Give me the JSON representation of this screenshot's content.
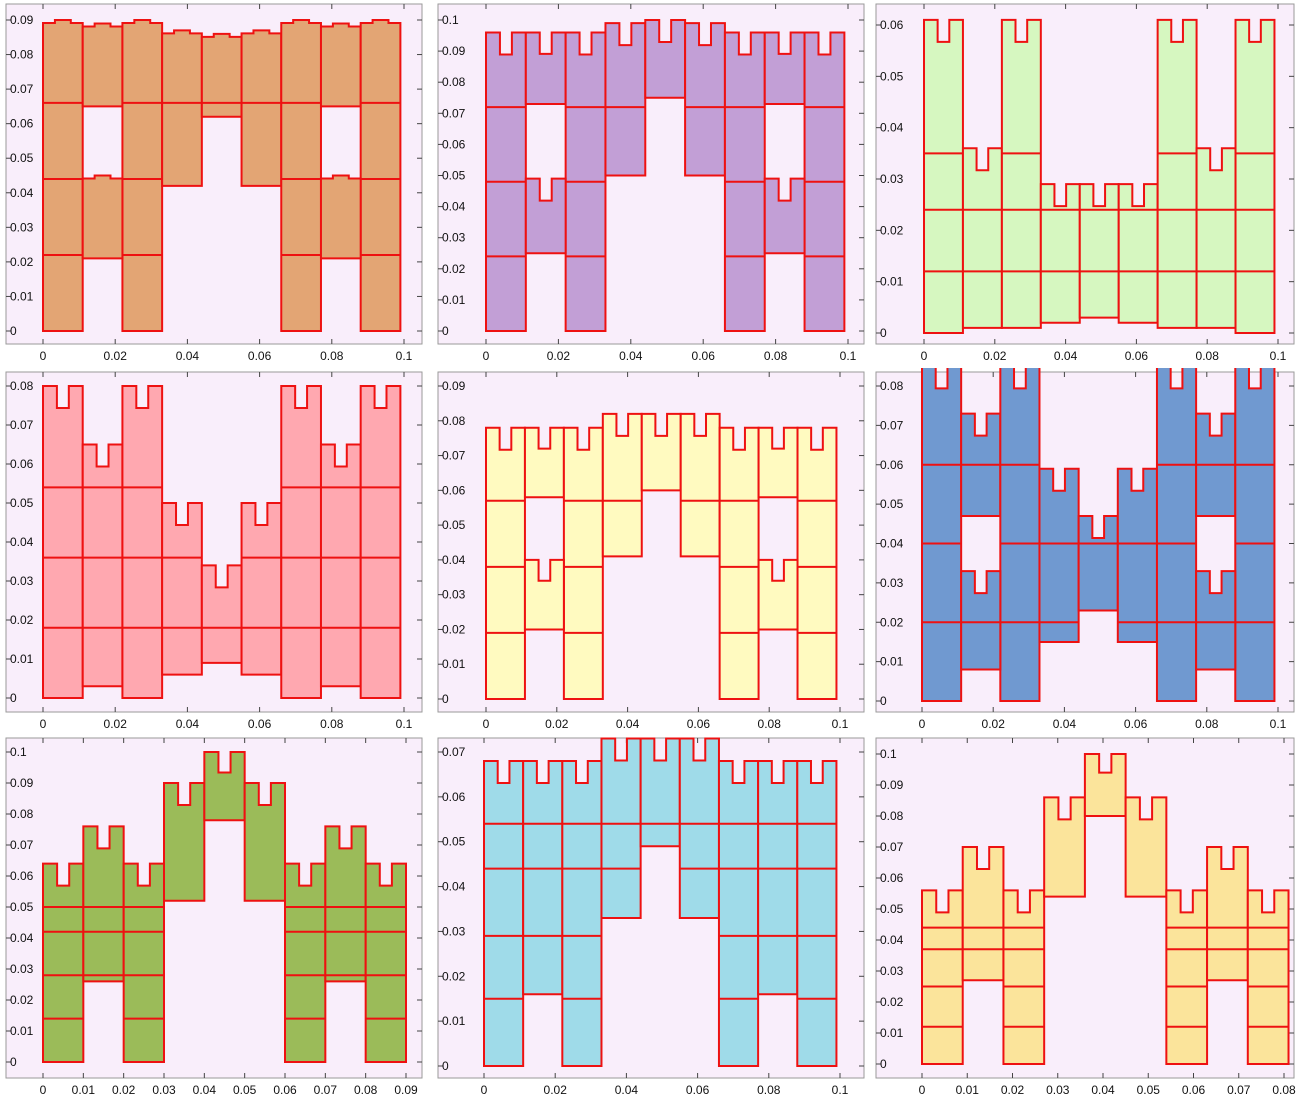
{
  "chart_data": [
    {
      "type": "fractal-region",
      "title": "",
      "fill": "#e3a574",
      "xlim": [
        0,
        0.1
      ],
      "ylim": [
        0,
        0.09
      ],
      "x_ticks": [
        "0",
        "0.02",
        "0.04",
        "0.06",
        "0.08",
        "0.1"
      ],
      "y_ticks": [
        "0",
        "0.01",
        "0.02",
        "0.03",
        "0.04",
        "0.05",
        "0.06",
        "0.07",
        "0.08",
        "0.09"
      ],
      "columns": [
        {
          "x0": 0.0,
          "x1": 0.011,
          "bottom": 0.0,
          "top": 0.09,
          "notched": false
        },
        {
          "x0": 0.011,
          "x1": 0.022,
          "bottom": 0.065,
          "top": 0.089,
          "notched": false
        },
        {
          "x0": 0.022,
          "x1": 0.033,
          "bottom": 0.0,
          "top": 0.09,
          "notched": false
        },
        {
          "x0": 0.033,
          "x1": 0.044,
          "bottom": 0.042,
          "top": 0.087,
          "notched": false
        },
        {
          "x0": 0.044,
          "x1": 0.055,
          "bottom": 0.062,
          "top": 0.086,
          "notched": false
        },
        {
          "x0": 0.055,
          "x1": 0.066,
          "bottom": 0.042,
          "top": 0.087,
          "notched": false
        },
        {
          "x0": 0.066,
          "x1": 0.077,
          "bottom": 0.0,
          "top": 0.09,
          "notched": false
        },
        {
          "x0": 0.077,
          "x1": 0.088,
          "bottom": 0.065,
          "top": 0.089,
          "notched": false
        },
        {
          "x0": 0.088,
          "x1": 0.099,
          "bottom": 0.0,
          "top": 0.09,
          "notched": false
        },
        {
          "x0": 0.011,
          "x1": 0.022,
          "bottom": 0.021,
          "top": 0.045,
          "notched": false
        },
        {
          "x0": 0.077,
          "x1": 0.088,
          "bottom": 0.021,
          "top": 0.045,
          "notched": false
        }
      ],
      "levels": [
        0.022,
        0.044,
        0.066
      ]
    },
    {
      "type": "fractal-region",
      "title": "",
      "fill": "#c29fd6",
      "xlim": [
        0,
        0.1
      ],
      "ylim": [
        0,
        0.1
      ],
      "x_ticks": [
        "0",
        "0.02",
        "0.04",
        "0.06",
        "0.08",
        "0.1"
      ],
      "y_ticks": [
        "0",
        "0.01",
        "0.02",
        "0.03",
        "0.04",
        "0.05",
        "0.06",
        "0.07",
        "0.08",
        "0.09",
        "0.1"
      ],
      "columns": [
        {
          "x0": 0.0,
          "x1": 0.011,
          "bottom": 0.0,
          "top": 0.096,
          "notched": true
        },
        {
          "x0": 0.011,
          "x1": 0.022,
          "bottom": 0.073,
          "top": 0.096,
          "notched": true
        },
        {
          "x0": 0.022,
          "x1": 0.033,
          "bottom": 0.0,
          "top": 0.096,
          "notched": true
        },
        {
          "x0": 0.033,
          "x1": 0.044,
          "bottom": 0.05,
          "top": 0.099,
          "notched": true
        },
        {
          "x0": 0.044,
          "x1": 0.055,
          "bottom": 0.075,
          "top": 0.1,
          "notched": true
        },
        {
          "x0": 0.055,
          "x1": 0.066,
          "bottom": 0.05,
          "top": 0.099,
          "notched": true
        },
        {
          "x0": 0.066,
          "x1": 0.077,
          "bottom": 0.0,
          "top": 0.096,
          "notched": true
        },
        {
          "x0": 0.077,
          "x1": 0.088,
          "bottom": 0.073,
          "top": 0.096,
          "notched": true
        },
        {
          "x0": 0.088,
          "x1": 0.099,
          "bottom": 0.0,
          "top": 0.096,
          "notched": true
        },
        {
          "x0": 0.011,
          "x1": 0.022,
          "bottom": 0.025,
          "top": 0.049,
          "notched": true
        },
        {
          "x0": 0.077,
          "x1": 0.088,
          "bottom": 0.025,
          "top": 0.049,
          "notched": true
        }
      ],
      "levels": [
        0.024,
        0.048,
        0.072
      ]
    },
    {
      "type": "fractal-region",
      "title": "",
      "fill": "#d6f7c0",
      "xlim": [
        0,
        0.1
      ],
      "ylim": [
        0,
        0.06
      ],
      "x_ticks": [
        "0",
        "0.02",
        "0.04",
        "0.06",
        "0.08",
        "0.1"
      ],
      "y_ticks": [
        "0",
        "0.01",
        "0.02",
        "0.03",
        "0.04",
        "0.05",
        "0.06"
      ],
      "columns": [
        {
          "x0": 0.0,
          "x1": 0.011,
          "bottom": 0.0,
          "top": 0.061,
          "notched": true
        },
        {
          "x0": 0.011,
          "x1": 0.022,
          "bottom": 0.001,
          "top": 0.036,
          "notched": true
        },
        {
          "x0": 0.022,
          "x1": 0.033,
          "bottom": 0.001,
          "top": 0.061,
          "notched": true
        },
        {
          "x0": 0.033,
          "x1": 0.044,
          "bottom": 0.002,
          "top": 0.029,
          "notched": true
        },
        {
          "x0": 0.044,
          "x1": 0.055,
          "bottom": 0.003,
          "top": 0.029,
          "notched": true
        },
        {
          "x0": 0.055,
          "x1": 0.066,
          "bottom": 0.002,
          "top": 0.029,
          "notched": true
        },
        {
          "x0": 0.066,
          "x1": 0.077,
          "bottom": 0.001,
          "top": 0.061,
          "notched": true
        },
        {
          "x0": 0.077,
          "x1": 0.088,
          "bottom": 0.001,
          "top": 0.036,
          "notched": true
        },
        {
          "x0": 0.088,
          "x1": 0.099,
          "bottom": 0.0,
          "top": 0.061,
          "notched": true
        }
      ],
      "levels": [
        0.012,
        0.024,
        0.035
      ]
    },
    {
      "type": "fractal-region",
      "title": "",
      "fill": "#ffa8b0",
      "xlim": [
        0,
        0.1
      ],
      "ylim": [
        0,
        0.08
      ],
      "x_ticks": [
        "0",
        "0.02",
        "0.04",
        "0.06",
        "0.08",
        "0.1"
      ],
      "y_ticks": [
        "0",
        "0.01",
        "0.02",
        "0.03",
        "0.04",
        "0.05",
        "0.06",
        "0.07",
        "0.08"
      ],
      "columns": [
        {
          "x0": 0.0,
          "x1": 0.011,
          "bottom": 0.0,
          "top": 0.08,
          "notched": true
        },
        {
          "x0": 0.011,
          "x1": 0.022,
          "bottom": 0.003,
          "top": 0.065,
          "notched": true
        },
        {
          "x0": 0.022,
          "x1": 0.033,
          "bottom": 0.0,
          "top": 0.08,
          "notched": true
        },
        {
          "x0": 0.033,
          "x1": 0.044,
          "bottom": 0.006,
          "top": 0.05,
          "notched": true
        },
        {
          "x0": 0.044,
          "x1": 0.055,
          "bottom": 0.009,
          "top": 0.034,
          "notched": true
        },
        {
          "x0": 0.055,
          "x1": 0.066,
          "bottom": 0.006,
          "top": 0.05,
          "notched": true
        },
        {
          "x0": 0.066,
          "x1": 0.077,
          "bottom": 0.0,
          "top": 0.08,
          "notched": true
        },
        {
          "x0": 0.077,
          "x1": 0.088,
          "bottom": 0.003,
          "top": 0.065,
          "notched": true
        },
        {
          "x0": 0.088,
          "x1": 0.099,
          "bottom": 0.0,
          "top": 0.08,
          "notched": true
        }
      ],
      "levels": [
        0.018,
        0.036,
        0.054
      ]
    },
    {
      "type": "fractal-region",
      "title": "",
      "fill": "#fffac0",
      "xlim": [
        0,
        0.1
      ],
      "ylim": [
        0,
        0.09
      ],
      "x_ticks": [
        "0",
        "0.02",
        "0.04",
        "0.06",
        "0.08",
        "0.1"
      ],
      "y_ticks": [
        "0",
        "0.01",
        "0.02",
        "0.03",
        "0.04",
        "0.05",
        "0.06",
        "0.07",
        "0.08",
        "0.09"
      ],
      "columns": [
        {
          "x0": 0.0,
          "x1": 0.011,
          "bottom": 0.0,
          "top": 0.078,
          "notched": true
        },
        {
          "x0": 0.011,
          "x1": 0.022,
          "bottom": 0.058,
          "top": 0.078,
          "notched": true
        },
        {
          "x0": 0.022,
          "x1": 0.033,
          "bottom": 0.0,
          "top": 0.078,
          "notched": true
        },
        {
          "x0": 0.033,
          "x1": 0.044,
          "bottom": 0.041,
          "top": 0.082,
          "notched": true
        },
        {
          "x0": 0.044,
          "x1": 0.055,
          "bottom": 0.06,
          "top": 0.082,
          "notched": true
        },
        {
          "x0": 0.055,
          "x1": 0.066,
          "bottom": 0.041,
          "top": 0.082,
          "notched": true
        },
        {
          "x0": 0.066,
          "x1": 0.077,
          "bottom": 0.0,
          "top": 0.078,
          "notched": true
        },
        {
          "x0": 0.077,
          "x1": 0.088,
          "bottom": 0.058,
          "top": 0.078,
          "notched": true
        },
        {
          "x0": 0.088,
          "x1": 0.099,
          "bottom": 0.0,
          "top": 0.078,
          "notched": true
        },
        {
          "x0": 0.011,
          "x1": 0.022,
          "bottom": 0.02,
          "top": 0.04,
          "notched": true
        },
        {
          "x0": 0.077,
          "x1": 0.088,
          "bottom": 0.02,
          "top": 0.04,
          "notched": true
        }
      ],
      "levels": [
        0.019,
        0.038,
        0.057
      ]
    },
    {
      "type": "fractal-region",
      "title": "",
      "fill": "#7099d0",
      "xlim": [
        0,
        0.1
      ],
      "ylim": [
        0,
        0.08
      ],
      "x_ticks": [
        "0",
        "0.02",
        "0.04",
        "0.06",
        "0.08",
        "0.1"
      ],
      "y_ticks": [
        "0",
        "0.01",
        "0.02",
        "0.03",
        "0.04",
        "0.05",
        "0.06",
        "0.07",
        "0.08"
      ],
      "columns": [
        {
          "x0": 0.0,
          "x1": 0.011,
          "bottom": 0.0,
          "top": 0.085,
          "notched": true
        },
        {
          "x0": 0.011,
          "x1": 0.022,
          "bottom": 0.047,
          "top": 0.073,
          "notched": true
        },
        {
          "x0": 0.022,
          "x1": 0.033,
          "bottom": 0.0,
          "top": 0.085,
          "notched": true
        },
        {
          "x0": 0.033,
          "x1": 0.044,
          "bottom": 0.015,
          "top": 0.059,
          "notched": true
        },
        {
          "x0": 0.044,
          "x1": 0.055,
          "bottom": 0.023,
          "top": 0.047,
          "notched": true
        },
        {
          "x0": 0.055,
          "x1": 0.066,
          "bottom": 0.015,
          "top": 0.059,
          "notched": true
        },
        {
          "x0": 0.066,
          "x1": 0.077,
          "bottom": 0.0,
          "top": 0.085,
          "notched": true
        },
        {
          "x0": 0.077,
          "x1": 0.088,
          "bottom": 0.047,
          "top": 0.073,
          "notched": true
        },
        {
          "x0": 0.088,
          "x1": 0.099,
          "bottom": 0.0,
          "top": 0.085,
          "notched": true
        },
        {
          "x0": 0.011,
          "x1": 0.022,
          "bottom": 0.008,
          "top": 0.033,
          "notched": true
        },
        {
          "x0": 0.077,
          "x1": 0.088,
          "bottom": 0.008,
          "top": 0.033,
          "notched": true
        }
      ],
      "levels": [
        0.02,
        0.04,
        0.06
      ]
    },
    {
      "type": "fractal-region",
      "title": "",
      "fill": "#9bbb59",
      "xlim": [
        0,
        0.09
      ],
      "ylim": [
        0,
        0.1
      ],
      "x_ticks": [
        "0",
        "0.01",
        "0.02",
        "0.03",
        "0.04",
        "0.05",
        "0.06",
        "0.07",
        "0.08",
        "0.09"
      ],
      "y_ticks": [
        "0",
        "0.01",
        "0.02",
        "0.03",
        "0.04",
        "0.05",
        "0.06",
        "0.07",
        "0.08",
        "0.09",
        "0.1"
      ],
      "columns": [
        {
          "x0": 0.0,
          "x1": 0.01,
          "bottom": 0.0,
          "top": 0.064,
          "notched": true
        },
        {
          "x0": 0.01,
          "x1": 0.02,
          "bottom": 0.026,
          "top": 0.076,
          "notched": true
        },
        {
          "x0": 0.02,
          "x1": 0.03,
          "bottom": 0.0,
          "top": 0.064,
          "notched": true
        },
        {
          "x0": 0.03,
          "x1": 0.04,
          "bottom": 0.052,
          "top": 0.09,
          "notched": true
        },
        {
          "x0": 0.04,
          "x1": 0.05,
          "bottom": 0.078,
          "top": 0.1,
          "notched": true
        },
        {
          "x0": 0.05,
          "x1": 0.06,
          "bottom": 0.052,
          "top": 0.09,
          "notched": true
        },
        {
          "x0": 0.06,
          "x1": 0.07,
          "bottom": 0.0,
          "top": 0.064,
          "notched": true
        },
        {
          "x0": 0.07,
          "x1": 0.08,
          "bottom": 0.026,
          "top": 0.076,
          "notched": true
        },
        {
          "x0": 0.08,
          "x1": 0.09,
          "bottom": 0.0,
          "top": 0.064,
          "notched": true
        }
      ],
      "levels": [
        0.014,
        0.028,
        0.042,
        0.05
      ]
    },
    {
      "type": "fractal-region",
      "title": "",
      "fill": "#9fdbe9",
      "xlim": [
        0,
        0.1
      ],
      "ylim": [
        0,
        0.07
      ],
      "x_ticks": [
        "0",
        "0.02",
        "0.04",
        "0.06",
        "0.08",
        "0.1"
      ],
      "y_ticks": [
        "0",
        "0.01",
        "0.02",
        "0.03",
        "0.04",
        "0.05",
        "0.06",
        "0.07"
      ],
      "columns": [
        {
          "x0": 0.0,
          "x1": 0.011,
          "bottom": 0.0,
          "top": 0.068,
          "notched": true
        },
        {
          "x0": 0.011,
          "x1": 0.022,
          "bottom": 0.016,
          "top": 0.068,
          "notched": true
        },
        {
          "x0": 0.022,
          "x1": 0.033,
          "bottom": 0.0,
          "top": 0.068,
          "notched": true
        },
        {
          "x0": 0.033,
          "x1": 0.044,
          "bottom": 0.033,
          "top": 0.073,
          "notched": true
        },
        {
          "x0": 0.044,
          "x1": 0.055,
          "bottom": 0.049,
          "top": 0.073,
          "notched": true
        },
        {
          "x0": 0.055,
          "x1": 0.066,
          "bottom": 0.033,
          "top": 0.073,
          "notched": true
        },
        {
          "x0": 0.066,
          "x1": 0.077,
          "bottom": 0.0,
          "top": 0.068,
          "notched": true
        },
        {
          "x0": 0.077,
          "x1": 0.088,
          "bottom": 0.016,
          "top": 0.068,
          "notched": true
        },
        {
          "x0": 0.088,
          "x1": 0.099,
          "bottom": 0.0,
          "top": 0.068,
          "notched": true
        }
      ],
      "levels": [
        0.015,
        0.029,
        0.044,
        0.054
      ]
    },
    {
      "type": "fractal-region",
      "title": "",
      "fill": "#fbe49b",
      "xlim": [
        0,
        0.08
      ],
      "ylim": [
        0,
        0.1
      ],
      "x_ticks": [
        "0",
        "0.01",
        "0.02",
        "0.03",
        "0.04",
        "0.05",
        "0.06",
        "0.07",
        "0.08"
      ],
      "y_ticks": [
        "0",
        "0.01",
        "0.02",
        "0.03",
        "0.04",
        "0.05",
        "0.06",
        "0.07",
        "0.08",
        "0.09",
        "0.1"
      ],
      "columns": [
        {
          "x0": 0.0,
          "x1": 0.009,
          "bottom": 0.0,
          "top": 0.056,
          "notched": true
        },
        {
          "x0": 0.009,
          "x1": 0.018,
          "bottom": 0.027,
          "top": 0.07,
          "notched": true
        },
        {
          "x0": 0.018,
          "x1": 0.027,
          "bottom": 0.0,
          "top": 0.056,
          "notched": true
        },
        {
          "x0": 0.027,
          "x1": 0.036,
          "bottom": 0.054,
          "top": 0.086,
          "notched": true
        },
        {
          "x0": 0.036,
          "x1": 0.045,
          "bottom": 0.08,
          "top": 0.1,
          "notched": true
        },
        {
          "x0": 0.045,
          "x1": 0.054,
          "bottom": 0.054,
          "top": 0.086,
          "notched": true
        },
        {
          "x0": 0.054,
          "x1": 0.063,
          "bottom": 0.0,
          "top": 0.056,
          "notched": true
        },
        {
          "x0": 0.063,
          "x1": 0.072,
          "bottom": 0.027,
          "top": 0.07,
          "notched": true
        },
        {
          "x0": 0.072,
          "x1": 0.081,
          "bottom": 0.0,
          "top": 0.056,
          "notched": true
        }
      ],
      "levels": [
        0.012,
        0.025,
        0.037,
        0.044
      ]
    }
  ]
}
